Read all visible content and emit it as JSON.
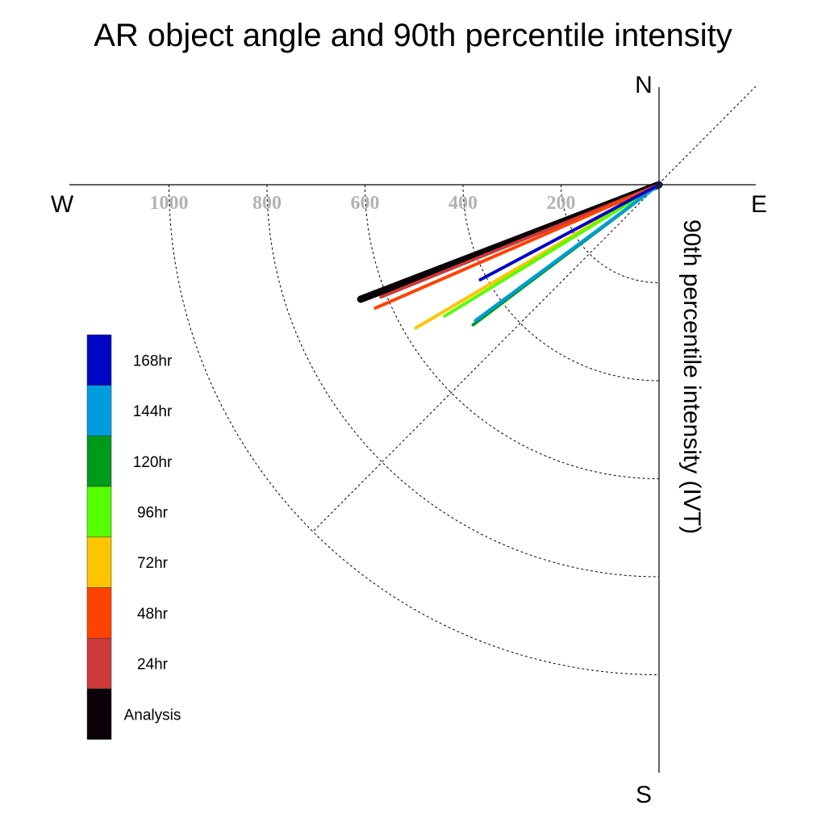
{
  "chart_data": {
    "type": "polar-line",
    "title": "AR object angle and 90th percentile intensity",
    "radial_label": "90th percentile intensity (IVT)",
    "compass": {
      "north": "N",
      "south": "S",
      "east": "E",
      "west": "W"
    },
    "radial_ticks": [
      200,
      400,
      600,
      800,
      1000
    ],
    "radial_tick_labels": [
      "200",
      "400",
      "600",
      "800",
      "1000"
    ],
    "rmax": 1200,
    "series": [
      {
        "name": "Analysis",
        "color": "#0a0008",
        "angle_deg": 21.0,
        "value": 652,
        "width": 9
      },
      {
        "name": "24hr",
        "color": "#cc3a3a",
        "angle_deg": 22.0,
        "value": 612,
        "width": 4
      },
      {
        "name": "48hr",
        "color": "#ff4200",
        "angle_deg": 23.5,
        "value": 631,
        "width": 4
      },
      {
        "name": "72hr",
        "color": "#ffc400",
        "angle_deg": 30.5,
        "value": 576,
        "width": 4
      },
      {
        "name": "96hr",
        "color": "#55ff00",
        "angle_deg": 31.5,
        "value": 513,
        "width": 4
      },
      {
        "name": "120hr",
        "color": "#009a1a",
        "angle_deg": 37.0,
        "value": 475,
        "width": 4
      },
      {
        "name": "144hr",
        "color": "#009cdd",
        "angle_deg": 36.5,
        "value": 466,
        "width": 4
      },
      {
        "name": "168hr",
        "color": "#0006c4",
        "angle_deg": 28.0,
        "value": 413,
        "width": 4
      }
    ],
    "legend_order": [
      "168hr",
      "144hr",
      "120hr",
      "96hr",
      "72hr",
      "48hr",
      "24hr",
      "Analysis"
    ],
    "legend_placement": "bottom-left"
  }
}
